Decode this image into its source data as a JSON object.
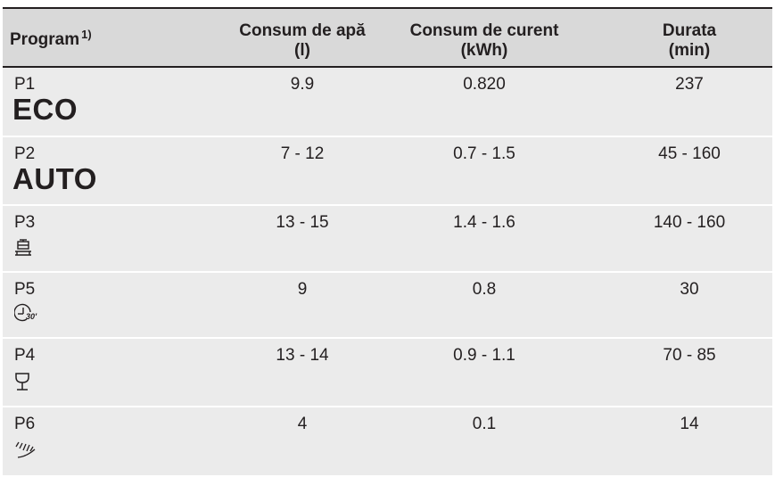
{
  "header": {
    "program": "Program",
    "program_note": "1)",
    "water_line1": "Consum de apă",
    "water_line2": "(l)",
    "power_line1": "Consum de curent",
    "power_line2": "(kWh)",
    "duration_line1": "Durata",
    "duration_line2": "(min)"
  },
  "rows": [
    {
      "code": "P1",
      "label": "ECO",
      "water": "9.9",
      "power": "0.820",
      "duration": "237"
    },
    {
      "code": "P2",
      "label": "AUTO",
      "water": "7 - 12",
      "power": "0.7 - 1.5",
      "duration": "45 - 160"
    },
    {
      "code": "P3",
      "icon": "pots-pans-icon",
      "water": "13 - 15",
      "power": "1.4 - 1.6",
      "duration": "140 - 160"
    },
    {
      "code": "P5",
      "icon": "timer-30-min-icon",
      "water": "9",
      "power": "0.8",
      "duration": "30"
    },
    {
      "code": "P4",
      "icon": "wine-glass-icon",
      "water": "13 - 14",
      "power": "0.9 - 1.1",
      "duration": "70 - 85"
    },
    {
      "code": "P6",
      "icon": "rinse-spray-icon",
      "water": "4",
      "power": "0.1",
      "duration": "14"
    }
  ]
}
